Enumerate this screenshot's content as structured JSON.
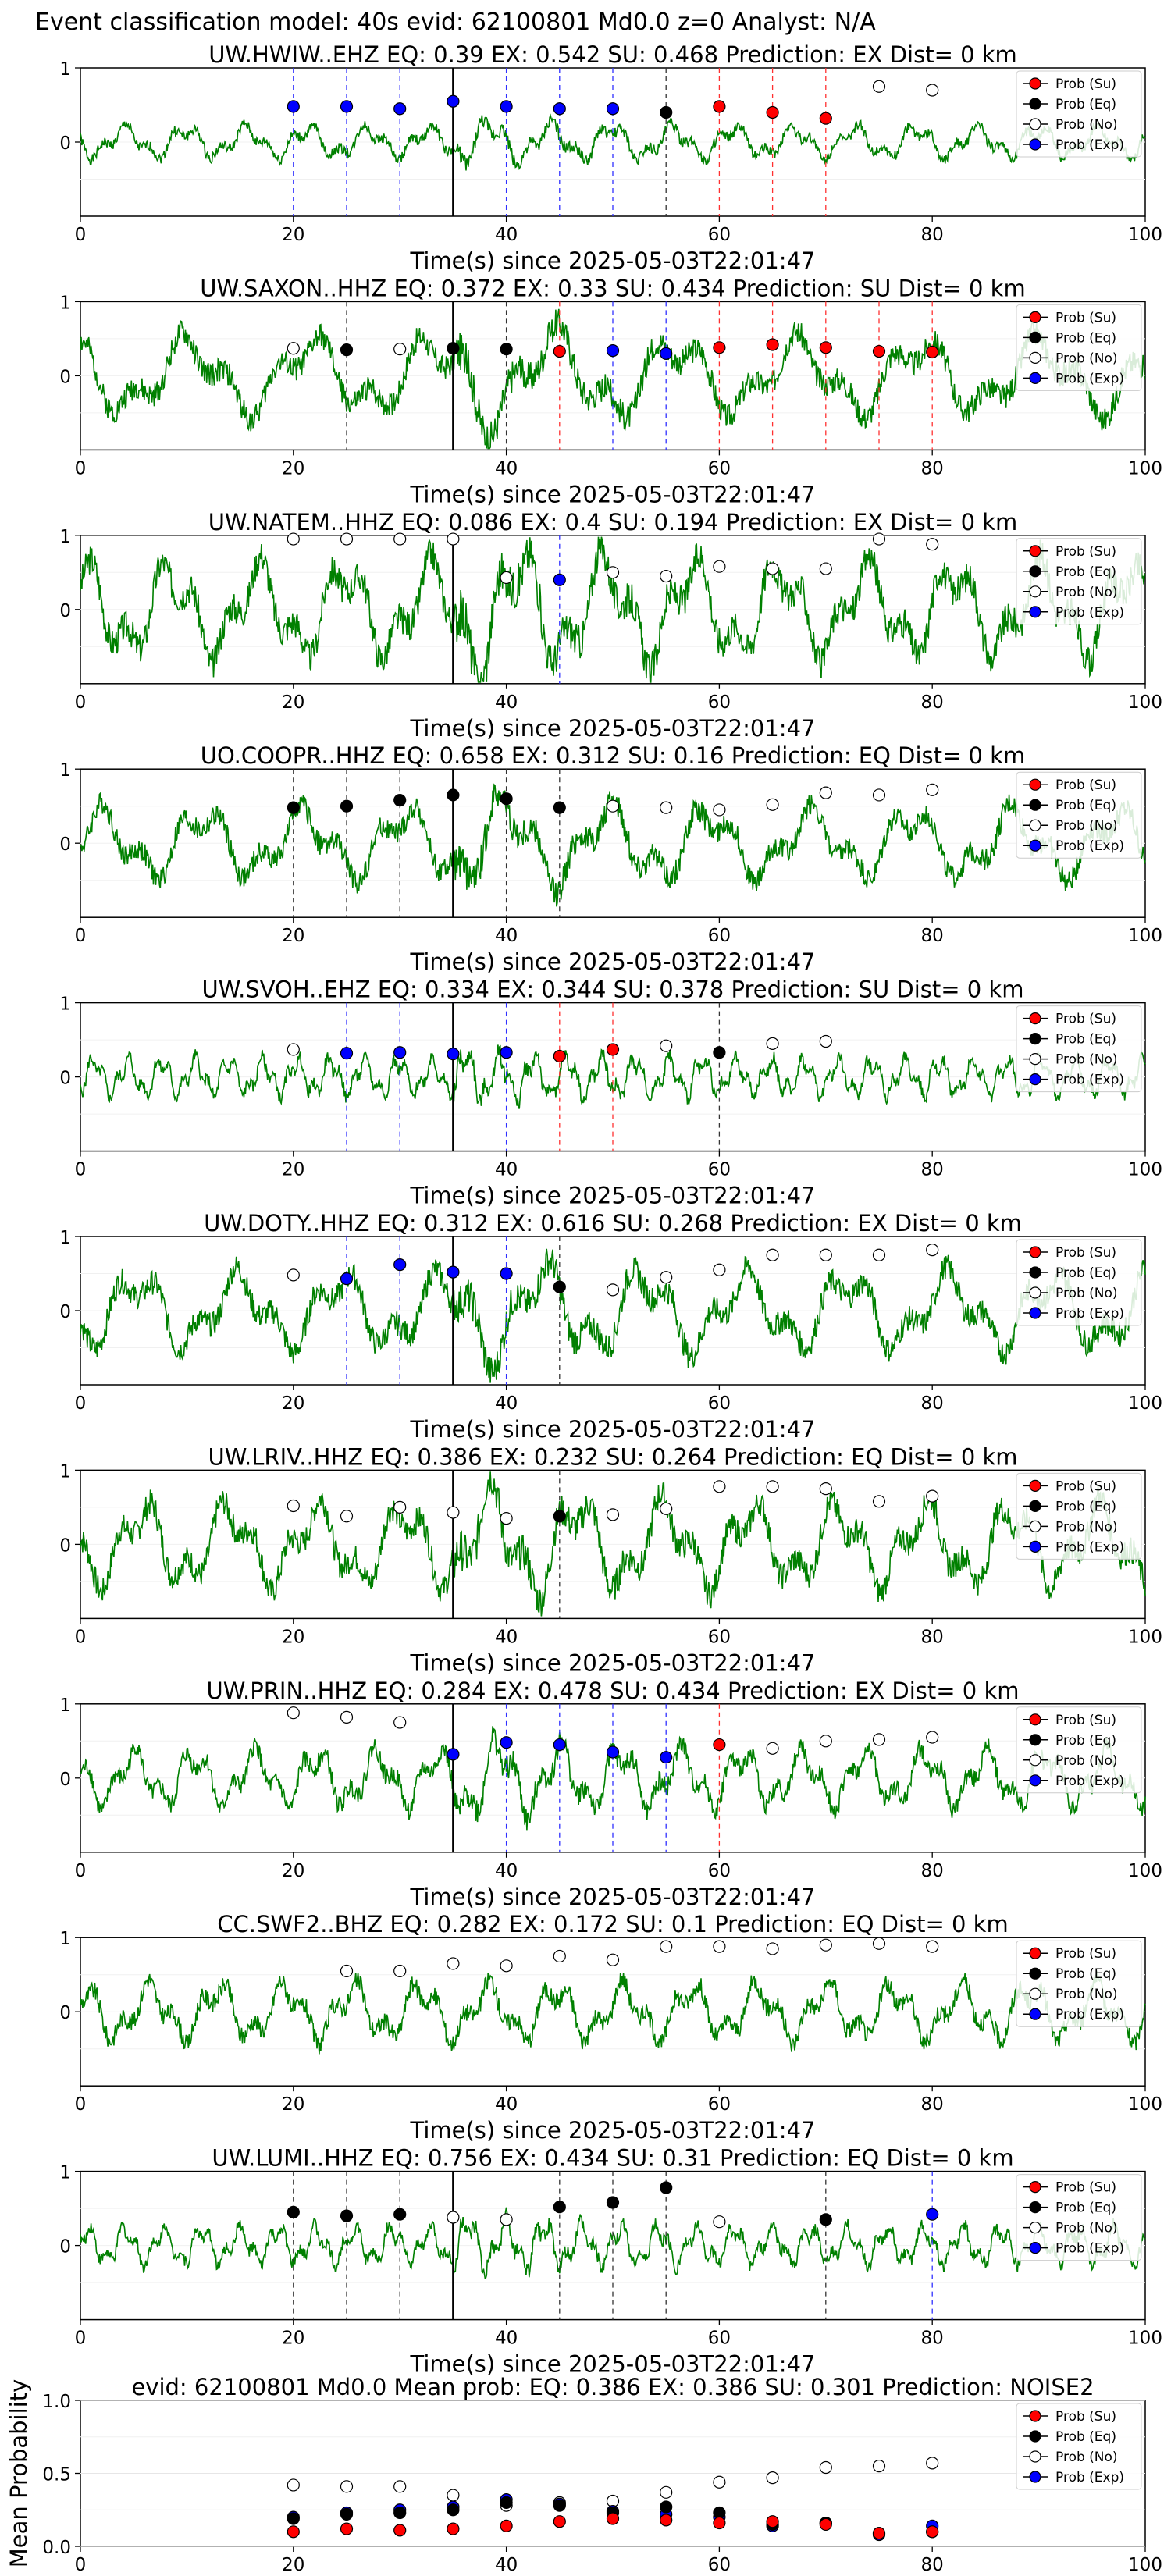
{
  "figure": {
    "suptitle": "Event classification model: 40s evid: 62100801 Md0.0 z=0 Analyst: N/A",
    "xlabel": "Time(s) since 2025-05-03T22:01:47",
    "legend_entries": [
      "Prob (Su)",
      "Prob (Eq)",
      "Prob (No)",
      "Prob (Exp)"
    ],
    "colors": {
      "su": "#ff0000",
      "eq": "#000000",
      "no": "#ffffff",
      "exp": "#0000ff",
      "waveform": "#008000"
    }
  },
  "chart_data": [
    {
      "type": "line",
      "station": "UW.HWIW..EHZ",
      "title": "UW.HWIW..EHZ   EQ: 0.39  EX: 0.542  SU: 0.468   Prediction: EX    Dist= 0 km",
      "xlim": [
        0,
        100
      ],
      "ylim": [
        -1,
        1
      ],
      "xticks": [
        0,
        20,
        40,
        60,
        80,
        100
      ],
      "yticks": [
        0,
        1
      ],
      "pick_time": 35,
      "amp": 0.25,
      "freq": 0.5,
      "seed": 1,
      "points": [
        {
          "t": 20,
          "cls": "exp",
          "p": 0.48
        },
        {
          "t": 25,
          "cls": "exp",
          "p": 0.48
        },
        {
          "t": 30,
          "cls": "exp",
          "p": 0.45
        },
        {
          "t": 35,
          "cls": "exp",
          "p": 0.55
        },
        {
          "t": 40,
          "cls": "exp",
          "p": 0.48
        },
        {
          "t": 45,
          "cls": "exp",
          "p": 0.45
        },
        {
          "t": 50,
          "cls": "exp",
          "p": 0.45
        },
        {
          "t": 55,
          "cls": "eq",
          "p": 0.4
        },
        {
          "t": 60,
          "cls": "su",
          "p": 0.48
        },
        {
          "t": 65,
          "cls": "su",
          "p": 0.4
        },
        {
          "t": 70,
          "cls": "su",
          "p": 0.32
        },
        {
          "t": 75,
          "cls": "no",
          "p": 0.75
        },
        {
          "t": 80,
          "cls": "no",
          "p": 0.7
        }
      ]
    },
    {
      "type": "line",
      "station": "UW.SAXON..HHZ",
      "title": "UW.SAXON..HHZ   EQ: 0.372  EX: 0.33  SU: 0.434   Prediction: SU    Dist= 0 km",
      "xlim": [
        0,
        100
      ],
      "ylim": [
        -1,
        1
      ],
      "xticks": [
        0,
        20,
        40,
        60,
        80,
        100
      ],
      "yticks": [
        0,
        1
      ],
      "pick_time": 35,
      "amp": 0.6,
      "freq": 0.25,
      "seed": 2,
      "points": [
        {
          "t": 20,
          "cls": "no",
          "p": 0.37
        },
        {
          "t": 25,
          "cls": "eq",
          "p": 0.35
        },
        {
          "t": 30,
          "cls": "no",
          "p": 0.36
        },
        {
          "t": 35,
          "cls": "eq",
          "p": 0.37
        },
        {
          "t": 40,
          "cls": "eq",
          "p": 0.36
        },
        {
          "t": 45,
          "cls": "su",
          "p": 0.33
        },
        {
          "t": 50,
          "cls": "exp",
          "p": 0.34
        },
        {
          "t": 55,
          "cls": "exp",
          "p": 0.3
        },
        {
          "t": 60,
          "cls": "su",
          "p": 0.38
        },
        {
          "t": 65,
          "cls": "su",
          "p": 0.42
        },
        {
          "t": 70,
          "cls": "su",
          "p": 0.38
        },
        {
          "t": 75,
          "cls": "su",
          "p": 0.33
        },
        {
          "t": 80,
          "cls": "su",
          "p": 0.32
        }
      ]
    },
    {
      "type": "line",
      "station": "UW.NATEM..HHZ",
      "title": "UW.NATEM..HHZ   EQ: 0.086  EX: 0.4  SU: 0.194   Prediction: EX    Dist= 0 km",
      "xlim": [
        0,
        100
      ],
      "ylim": [
        -1,
        1
      ],
      "xticks": [
        0,
        20,
        40,
        60,
        80,
        100
      ],
      "yticks": [
        0,
        1
      ],
      "pick_time": 35,
      "amp": 0.75,
      "freq": 0.35,
      "seed": 3,
      "points": [
        {
          "t": 20,
          "cls": "no",
          "p": 0.95
        },
        {
          "t": 25,
          "cls": "no",
          "p": 0.95
        },
        {
          "t": 30,
          "cls": "no",
          "p": 0.95
        },
        {
          "t": 35,
          "cls": "no",
          "p": 0.95
        },
        {
          "t": 40,
          "cls": "no",
          "p": 0.43
        },
        {
          "t": 45,
          "cls": "exp",
          "p": 0.4
        },
        {
          "t": 50,
          "cls": "no",
          "p": 0.5
        },
        {
          "t": 55,
          "cls": "no",
          "p": 0.45
        },
        {
          "t": 60,
          "cls": "no",
          "p": 0.58
        },
        {
          "t": 65,
          "cls": "no",
          "p": 0.55
        },
        {
          "t": 70,
          "cls": "no",
          "p": 0.55
        },
        {
          "t": 75,
          "cls": "no",
          "p": 0.95
        },
        {
          "t": 80,
          "cls": "no",
          "p": 0.88
        }
      ]
    },
    {
      "type": "line",
      "station": "UO.COOPR..HHZ",
      "title": "UO.COOPR..HHZ   EQ: 0.658  EX: 0.312  SU: 0.16   Prediction: EQ    Dist= 0 km",
      "xlim": [
        0,
        100
      ],
      "ylim": [
        -1,
        1
      ],
      "xticks": [
        0,
        20,
        40,
        60,
        80,
        100
      ],
      "yticks": [
        0,
        1
      ],
      "pick_time": 35,
      "amp": 0.55,
      "freq": 0.3,
      "seed": 4,
      "points": [
        {
          "t": 20,
          "cls": "eq",
          "p": 0.48
        },
        {
          "t": 25,
          "cls": "eq",
          "p": 0.5
        },
        {
          "t": 30,
          "cls": "eq",
          "p": 0.58
        },
        {
          "t": 35,
          "cls": "eq",
          "p": 0.65
        },
        {
          "t": 40,
          "cls": "eq",
          "p": 0.6
        },
        {
          "t": 45,
          "cls": "eq",
          "p": 0.48
        },
        {
          "t": 50,
          "cls": "no",
          "p": 0.5
        },
        {
          "t": 55,
          "cls": "no",
          "p": 0.48
        },
        {
          "t": 60,
          "cls": "no",
          "p": 0.45
        },
        {
          "t": 65,
          "cls": "no",
          "p": 0.52
        },
        {
          "t": 70,
          "cls": "no",
          "p": 0.68
        },
        {
          "t": 75,
          "cls": "no",
          "p": 0.65
        },
        {
          "t": 80,
          "cls": "no",
          "p": 0.72
        }
      ]
    },
    {
      "type": "line",
      "station": "UW.SVOH..EHZ",
      "title": "UW.SVOH..EHZ   EQ: 0.334  EX: 0.344  SU: 0.378   Prediction: SU    Dist= 0 km",
      "xlim": [
        0,
        100
      ],
      "ylim": [
        -1,
        1
      ],
      "xticks": [
        0,
        20,
        40,
        60,
        80,
        100
      ],
      "yticks": [
        0,
        1
      ],
      "pick_time": 35,
      "amp": 0.3,
      "freq": 0.9,
      "seed": 5,
      "points": [
        {
          "t": 20,
          "cls": "no",
          "p": 0.37
        },
        {
          "t": 25,
          "cls": "exp",
          "p": 0.32
        },
        {
          "t": 30,
          "cls": "exp",
          "p": 0.33
        },
        {
          "t": 35,
          "cls": "exp",
          "p": 0.31
        },
        {
          "t": 40,
          "cls": "exp",
          "p": 0.33
        },
        {
          "t": 45,
          "cls": "su",
          "p": 0.28
        },
        {
          "t": 50,
          "cls": "su",
          "p": 0.37
        },
        {
          "t": 55,
          "cls": "no",
          "p": 0.42
        },
        {
          "t": 60,
          "cls": "eq",
          "p": 0.33
        },
        {
          "t": 65,
          "cls": "no",
          "p": 0.45
        },
        {
          "t": 70,
          "cls": "no",
          "p": 0.48
        }
      ]
    },
    {
      "type": "line",
      "station": "UW.DOTY..HHZ",
      "title": "UW.DOTY..HHZ   EQ: 0.312  EX: 0.616  SU: 0.268   Prediction: EX    Dist= 0 km",
      "xlim": [
        0,
        100
      ],
      "ylim": [
        -1,
        1
      ],
      "xticks": [
        0,
        20,
        40,
        60,
        80,
        100
      ],
      "yticks": [
        0,
        1
      ],
      "pick_time": 35,
      "amp": 0.6,
      "freq": 0.3,
      "seed": 6,
      "points": [
        {
          "t": 20,
          "cls": "no",
          "p": 0.48
        },
        {
          "t": 25,
          "cls": "exp",
          "p": 0.43
        },
        {
          "t": 30,
          "cls": "exp",
          "p": 0.62
        },
        {
          "t": 35,
          "cls": "exp",
          "p": 0.52
        },
        {
          "t": 40,
          "cls": "exp",
          "p": 0.5
        },
        {
          "t": 45,
          "cls": "eq",
          "p": 0.32
        },
        {
          "t": 50,
          "cls": "no",
          "p": 0.28
        },
        {
          "t": 55,
          "cls": "no",
          "p": 0.45
        },
        {
          "t": 60,
          "cls": "no",
          "p": 0.55
        },
        {
          "t": 65,
          "cls": "no",
          "p": 0.75
        },
        {
          "t": 70,
          "cls": "no",
          "p": 0.75
        },
        {
          "t": 75,
          "cls": "no",
          "p": 0.75
        },
        {
          "t": 80,
          "cls": "no",
          "p": 0.82
        }
      ]
    },
    {
      "type": "line",
      "station": "UW.LRIV..HHZ",
      "title": "UW.LRIV..HHZ   EQ: 0.386  EX: 0.232  SU: 0.264   Prediction: EQ    Dist= 0 km",
      "xlim": [
        0,
        100
      ],
      "ylim": [
        -1,
        1
      ],
      "xticks": [
        0,
        20,
        40,
        60,
        80,
        100
      ],
      "yticks": [
        0,
        1
      ],
      "pick_time": 35,
      "amp": 0.65,
      "freq": 0.35,
      "seed": 7,
      "points": [
        {
          "t": 20,
          "cls": "no",
          "p": 0.52
        },
        {
          "t": 25,
          "cls": "no",
          "p": 0.38
        },
        {
          "t": 30,
          "cls": "no",
          "p": 0.5
        },
        {
          "t": 35,
          "cls": "no",
          "p": 0.43
        },
        {
          "t": 40,
          "cls": "no",
          "p": 0.35
        },
        {
          "t": 45,
          "cls": "eq",
          "p": 0.38
        },
        {
          "t": 50,
          "cls": "no",
          "p": 0.4
        },
        {
          "t": 55,
          "cls": "no",
          "p": 0.48
        },
        {
          "t": 60,
          "cls": "no",
          "p": 0.78
        },
        {
          "t": 65,
          "cls": "no",
          "p": 0.78
        },
        {
          "t": 70,
          "cls": "no",
          "p": 0.75
        },
        {
          "t": 75,
          "cls": "no",
          "p": 0.58
        },
        {
          "t": 80,
          "cls": "no",
          "p": 0.65
        }
      ]
    },
    {
      "type": "line",
      "station": "UW.PRIN..HHZ",
      "title": "UW.PRIN..HHZ   EQ: 0.284  EX: 0.478  SU: 0.434   Prediction: EX    Dist= 0 km",
      "xlim": [
        0,
        100
      ],
      "ylim": [
        -1,
        1
      ],
      "xticks": [
        0,
        20,
        40,
        60,
        80,
        100
      ],
      "yticks": [
        0,
        1
      ],
      "pick_time": 35,
      "amp": 0.45,
      "freq": 0.5,
      "seed": 8,
      "points": [
        {
          "t": 20,
          "cls": "no",
          "p": 0.88
        },
        {
          "t": 25,
          "cls": "no",
          "p": 0.82
        },
        {
          "t": 30,
          "cls": "no",
          "p": 0.75
        },
        {
          "t": 35,
          "cls": "exp",
          "p": 0.32
        },
        {
          "t": 40,
          "cls": "exp",
          "p": 0.48
        },
        {
          "t": 45,
          "cls": "exp",
          "p": 0.45
        },
        {
          "t": 50,
          "cls": "exp",
          "p": 0.35
        },
        {
          "t": 55,
          "cls": "exp",
          "p": 0.28
        },
        {
          "t": 60,
          "cls": "su",
          "p": 0.45
        },
        {
          "t": 65,
          "cls": "no",
          "p": 0.4
        },
        {
          "t": 70,
          "cls": "no",
          "p": 0.5
        },
        {
          "t": 75,
          "cls": "no",
          "p": 0.52
        },
        {
          "t": 80,
          "cls": "no",
          "p": 0.55
        }
      ]
    },
    {
      "type": "line",
      "station": "CC.SWF2..BHZ",
      "title": "CC.SWF2..BHZ   EQ: 0.282  EX: 0.172  SU: 0.1   Prediction: EQ    Dist= 0 km",
      "xlim": [
        0,
        100
      ],
      "ylim": [
        -1,
        1
      ],
      "xticks": [
        0,
        20,
        40,
        60,
        80,
        100
      ],
      "yticks": [
        0,
        1
      ],
      "pick_time": null,
      "amp": 0.45,
      "freq": 0.45,
      "seed": 9,
      "points": [
        {
          "t": 25,
          "cls": "no",
          "p": 0.55
        },
        {
          "t": 30,
          "cls": "no",
          "p": 0.55
        },
        {
          "t": 35,
          "cls": "no",
          "p": 0.65
        },
        {
          "t": 40,
          "cls": "no",
          "p": 0.62
        },
        {
          "t": 45,
          "cls": "no",
          "p": 0.75
        },
        {
          "t": 50,
          "cls": "no",
          "p": 0.7
        },
        {
          "t": 55,
          "cls": "no",
          "p": 0.88
        },
        {
          "t": 60,
          "cls": "no",
          "p": 0.88
        },
        {
          "t": 65,
          "cls": "no",
          "p": 0.85
        },
        {
          "t": 70,
          "cls": "no",
          "p": 0.9
        },
        {
          "t": 75,
          "cls": "no",
          "p": 0.92
        },
        {
          "t": 80,
          "cls": "no",
          "p": 0.88
        }
      ]
    },
    {
      "type": "line",
      "station": "UW.LUMI..HHZ",
      "title": "UW.LUMI..HHZ   EQ: 0.756  EX: 0.434  SU: 0.31   Prediction: EQ    Dist= 0 km",
      "xlim": [
        0,
        100
      ],
      "ylim": [
        -1,
        1
      ],
      "xticks": [
        0,
        20,
        40,
        60,
        80,
        100
      ],
      "yticks": [
        0,
        1
      ],
      "pick_time": 35,
      "amp": 0.3,
      "freq": 0.8,
      "seed": 10,
      "points": [
        {
          "t": 20,
          "cls": "eq",
          "p": 0.45
        },
        {
          "t": 25,
          "cls": "eq",
          "p": 0.4
        },
        {
          "t": 30,
          "cls": "eq",
          "p": 0.42
        },
        {
          "t": 35,
          "cls": "no",
          "p": 0.38
        },
        {
          "t": 40,
          "cls": "no",
          "p": 0.35
        },
        {
          "t": 45,
          "cls": "eq",
          "p": 0.52
        },
        {
          "t": 50,
          "cls": "eq",
          "p": 0.58
        },
        {
          "t": 55,
          "cls": "eq",
          "p": 0.78
        },
        {
          "t": 60,
          "cls": "no",
          "p": 0.32
        },
        {
          "t": 70,
          "cls": "eq",
          "p": 0.35
        },
        {
          "t": 80,
          "cls": "exp",
          "p": 0.42
        }
      ]
    },
    {
      "type": "scatter",
      "station": "mean",
      "title": "evid: 62100801  Md0.0   Mean prob:   EQ: 0.386  EX: 0.386  SU: 0.301   Prediction: NOISE2",
      "ylabel": "Mean Probability",
      "xlim": [
        0,
        100
      ],
      "ylim": [
        0,
        1
      ],
      "xticks": [
        0,
        20,
        40,
        60,
        80,
        100
      ],
      "yticks": [
        0,
        0.5,
        1
      ],
      "ytick_labels": [
        "0.0",
        "0.5",
        "1.0"
      ],
      "t": [
        20,
        25,
        30,
        35,
        40,
        45,
        50,
        55,
        60,
        65,
        70,
        75,
        80
      ],
      "series": [
        {
          "name": "Prob (No)",
          "cls": "no",
          "values": [
            0.42,
            0.41,
            0.41,
            0.35,
            0.28,
            0.3,
            0.31,
            0.37,
            0.44,
            0.47,
            0.54,
            0.55,
            0.57
          ]
        },
        {
          "name": "Prob (Exp)",
          "cls": "exp",
          "values": [
            0.2,
            0.23,
            0.25,
            0.27,
            0.32,
            0.29,
            0.24,
            0.22,
            0.2,
            0.14,
            0.16,
            0.08,
            0.14
          ]
        },
        {
          "name": "Prob (Eq)",
          "cls": "eq",
          "values": [
            0.19,
            0.22,
            0.23,
            0.25,
            0.3,
            0.28,
            0.23,
            0.27,
            0.23,
            0.15,
            0.16,
            0.09,
            0.1
          ]
        },
        {
          "name": "Prob (Su)",
          "cls": "su",
          "values": [
            0.1,
            0.12,
            0.11,
            0.12,
            0.14,
            0.17,
            0.19,
            0.18,
            0.16,
            0.17,
            0.15,
            0.09,
            0.1
          ]
        }
      ]
    }
  ]
}
